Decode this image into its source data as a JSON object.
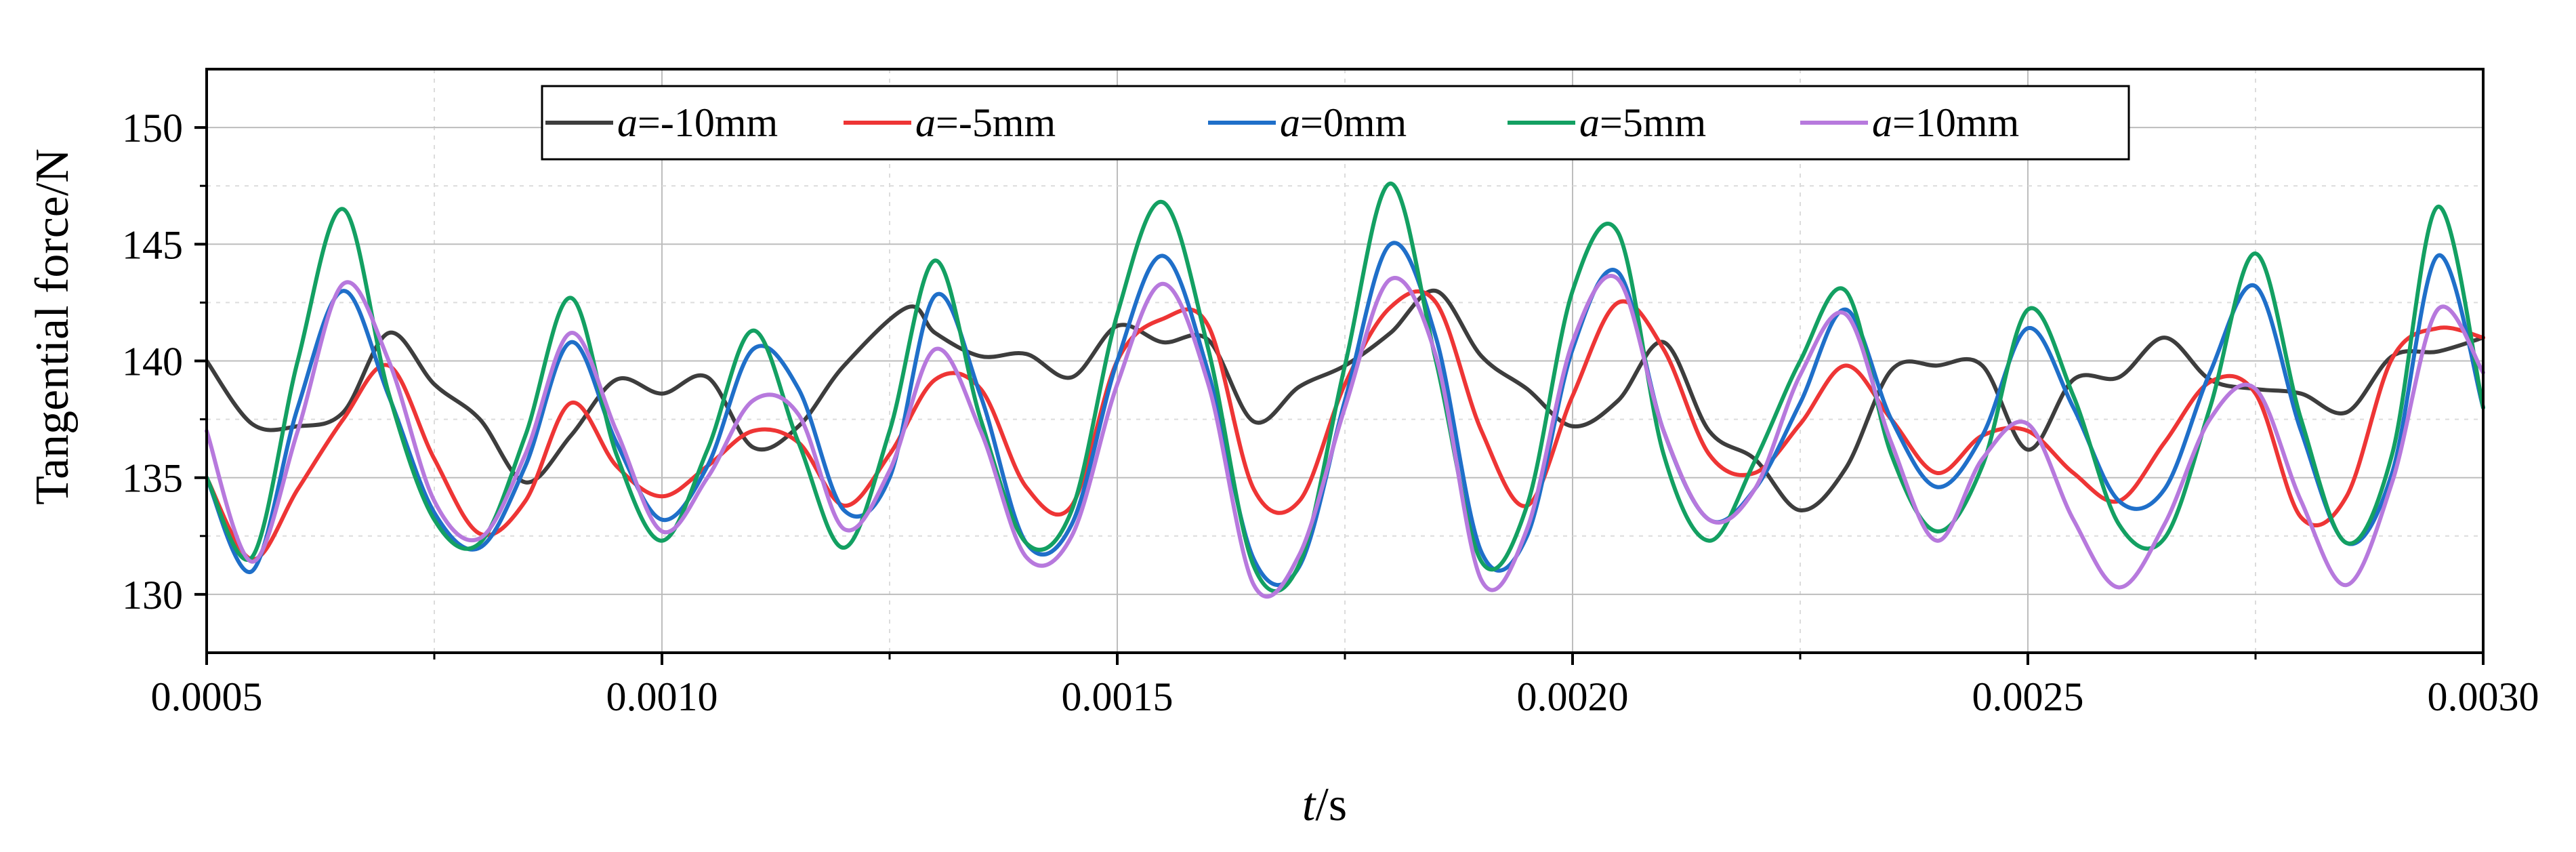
{
  "chart_data": {
    "type": "line",
    "title": "",
    "xlabel_italic": "t",
    "xlabel_rest": "/s",
    "ylabel": "Tangential force/N",
    "xlim": [
      0.0005,
      0.003
    ],
    "ylim": [
      127.5,
      152.5
    ],
    "xticks": [
      0.0005,
      0.001,
      0.0015,
      0.002,
      0.0025,
      0.003
    ],
    "xtick_labels": [
      "0.0005",
      "0.0010",
      "0.0015",
      "0.0020",
      "0.0025",
      "0.0030"
    ],
    "yticks": [
      130,
      135,
      140,
      145,
      150
    ],
    "ytick_labels": [
      "130",
      "135",
      "140",
      "145",
      "150"
    ],
    "grid": true,
    "legend_position": "top",
    "series": [
      {
        "name": "a=-10mm",
        "label_italic": "a",
        "label_rest": "=-10mm",
        "color": "#3d3d3d",
        "x": [
          0.0005,
          0.00055,
          0.0006,
          0.00065,
          0.0007,
          0.00075,
          0.0008,
          0.00085,
          0.0009,
          0.00095,
          0.001,
          0.00105,
          0.0011,
          0.00115,
          0.0012,
          0.00127,
          0.0013,
          0.00135,
          0.0014,
          0.00145,
          0.0015,
          0.00155,
          0.0016,
          0.00165,
          0.0017,
          0.00175,
          0.0018,
          0.00185,
          0.0019,
          0.00195,
          0.002,
          0.00205,
          0.0021,
          0.00215,
          0.0022,
          0.00225,
          0.0023,
          0.00235,
          0.0024,
          0.00245,
          0.0025,
          0.00255,
          0.0026,
          0.00265,
          0.0027,
          0.00275,
          0.0028,
          0.00285,
          0.0029,
          0.00295,
          0.003
        ],
        "y": [
          140,
          137.3,
          137.2,
          137.8,
          141.2,
          139,
          137.5,
          134.8,
          136.8,
          139.2,
          138.6,
          139.3,
          136.3,
          137.2,
          139.8,
          142.3,
          141.2,
          140.2,
          140.3,
          139.3,
          141.5,
          140.8,
          140.9,
          137.4,
          138.9,
          139.8,
          141.2,
          143,
          140.2,
          138.8,
          137.2,
          138.3,
          140.8,
          137,
          135.8,
          133.6,
          135.4,
          139.6,
          139.8,
          139.8,
          136.2,
          139.2,
          139.3,
          141,
          139.2,
          138.8,
          138.6,
          137.8,
          140.2,
          140.4,
          141
        ]
      },
      {
        "name": "a=-5mm",
        "label_italic": "a",
        "label_rest": "=-5mm",
        "color": "#ee3535",
        "x": [
          0.0005,
          0.00055,
          0.0006,
          0.00065,
          0.0007,
          0.00075,
          0.0008,
          0.00085,
          0.0009,
          0.00095,
          0.001,
          0.00105,
          0.0011,
          0.00115,
          0.0012,
          0.00125,
          0.0013,
          0.00135,
          0.0014,
          0.00145,
          0.0015,
          0.00155,
          0.0016,
          0.00165,
          0.0017,
          0.00175,
          0.0018,
          0.00185,
          0.0019,
          0.00195,
          0.002,
          0.00205,
          0.0021,
          0.00215,
          0.0022,
          0.00225,
          0.0023,
          0.00235,
          0.0024,
          0.00245,
          0.0025,
          0.00255,
          0.0026,
          0.00265,
          0.0027,
          0.00275,
          0.0028,
          0.00285,
          0.0029,
          0.00295,
          0.003
        ],
        "y": [
          135,
          131.5,
          134.5,
          137.5,
          139.8,
          135.8,
          132.6,
          134,
          138.2,
          135.5,
          134.2,
          135.5,
          137,
          136.5,
          133.8,
          136,
          139.2,
          138.8,
          134.6,
          133.8,
          140,
          141.8,
          141.5,
          134.5,
          134,
          139,
          142.3,
          142.5,
          137,
          133.8,
          138.5,
          142.5,
          140.5,
          136,
          135.2,
          137.3,
          139.8,
          137.5,
          135.2,
          136.8,
          137,
          135.2,
          134,
          136.5,
          139.1,
          138.6,
          133.3,
          134.2,
          140.1,
          141.4,
          141
        ]
      },
      {
        "name": "a=0mm",
        "label_italic": "a",
        "label_rest": "=0mm",
        "color": "#1f6fc9",
        "x": [
          0.0005,
          0.00055,
          0.0006,
          0.00065,
          0.0007,
          0.00075,
          0.0008,
          0.00085,
          0.0009,
          0.00095,
          0.001,
          0.00105,
          0.0011,
          0.00115,
          0.0012,
          0.00125,
          0.0013,
          0.00135,
          0.0014,
          0.00145,
          0.0015,
          0.00155,
          0.0016,
          0.00165,
          0.0017,
          0.00175,
          0.0018,
          0.00185,
          0.0019,
          0.00195,
          0.002,
          0.00205,
          0.0021,
          0.00215,
          0.0022,
          0.00225,
          0.0023,
          0.00235,
          0.0024,
          0.00245,
          0.0025,
          0.00255,
          0.0026,
          0.00265,
          0.0027,
          0.00275,
          0.0028,
          0.00285,
          0.0029,
          0.00295,
          0.003
        ],
        "y": [
          135,
          131,
          138,
          143,
          138.5,
          133.5,
          132,
          135.5,
          140.8,
          136.5,
          133.2,
          135.5,
          140.5,
          138.8,
          133.6,
          135,
          142.8,
          138.5,
          132.2,
          133,
          140,
          144.5,
          139.5,
          131.5,
          131.2,
          138.3,
          145,
          141,
          131.8,
          132.5,
          140.5,
          143.8,
          137,
          133.2,
          134.5,
          138.2,
          142.2,
          137.5,
          134.6,
          136.8,
          141.4,
          138,
          134,
          134.5,
          139.5,
          143.2,
          137,
          132.2,
          135.2,
          144.5,
          138
        ]
      },
      {
        "name": "a=5mm",
        "label_italic": "a",
        "label_rest": "=5mm",
        "color": "#13a062",
        "x": [
          0.0005,
          0.00055,
          0.0006,
          0.00065,
          0.0007,
          0.00075,
          0.0008,
          0.00085,
          0.0009,
          0.00095,
          0.001,
          0.00105,
          0.0011,
          0.00115,
          0.0012,
          0.00125,
          0.0013,
          0.00135,
          0.0014,
          0.00145,
          0.0015,
          0.00155,
          0.0016,
          0.00165,
          0.0017,
          0.00175,
          0.0018,
          0.00185,
          0.0019,
          0.00195,
          0.002,
          0.00205,
          0.0021,
          0.00215,
          0.0022,
          0.00225,
          0.0023,
          0.00235,
          0.0024,
          0.00245,
          0.0025,
          0.00255,
          0.0026,
          0.00265,
          0.0027,
          0.00275,
          0.0028,
          0.00285,
          0.0029,
          0.00295,
          0.003
        ],
        "y": [
          135,
          131.6,
          140,
          146.5,
          138.6,
          133.2,
          132.2,
          136.8,
          142.7,
          136,
          132.3,
          136.2,
          141.3,
          136.5,
          132,
          137,
          144.3,
          137.5,
          132.2,
          133.6,
          142,
          146.8,
          140.5,
          131.2,
          131.3,
          139.8,
          147.6,
          140,
          131.4,
          133.8,
          143,
          145.5,
          136,
          132.3,
          135.7,
          140,
          143,
          136,
          132.7,
          135.5,
          142.2,
          138.5,
          133,
          132.4,
          138,
          144.6,
          137.5,
          132.2,
          136,
          146.6,
          138
        ]
      },
      {
        "name": "a=10mm",
        "label_italic": "a",
        "label_rest": "=10mm",
        "color": "#b779dd",
        "x": [
          0.0005,
          0.00055,
          0.0006,
          0.00065,
          0.0007,
          0.00075,
          0.0008,
          0.00085,
          0.0009,
          0.00095,
          0.001,
          0.00105,
          0.0011,
          0.00115,
          0.0012,
          0.00125,
          0.0013,
          0.00135,
          0.0014,
          0.00145,
          0.0015,
          0.00155,
          0.0016,
          0.00165,
          0.0017,
          0.00175,
          0.0018,
          0.00185,
          0.0019,
          0.00195,
          0.002,
          0.00205,
          0.0021,
          0.00215,
          0.0022,
          0.00225,
          0.0023,
          0.00235,
          0.0024,
          0.00245,
          0.0025,
          0.00255,
          0.0026,
          0.00265,
          0.0027,
          0.00275,
          0.0028,
          0.00285,
          0.0029,
          0.00295,
          0.003
        ],
        "y": [
          137,
          131.4,
          137,
          143.3,
          140,
          134,
          132.4,
          136,
          141.2,
          137,
          132.7,
          135,
          138.3,
          137.7,
          132.8,
          135.3,
          140.5,
          137,
          131.6,
          132.5,
          139,
          143.3,
          139,
          130.4,
          131.7,
          138,
          143.5,
          140.2,
          130.6,
          132.8,
          140.8,
          143.5,
          137,
          133.2,
          134.5,
          139.4,
          142,
          136.5,
          132.3,
          135.8,
          137.3,
          133.2,
          130.3,
          133,
          137.5,
          138.8,
          134,
          130.4,
          134.8,
          142.2,
          139.5
        ]
      }
    ]
  }
}
